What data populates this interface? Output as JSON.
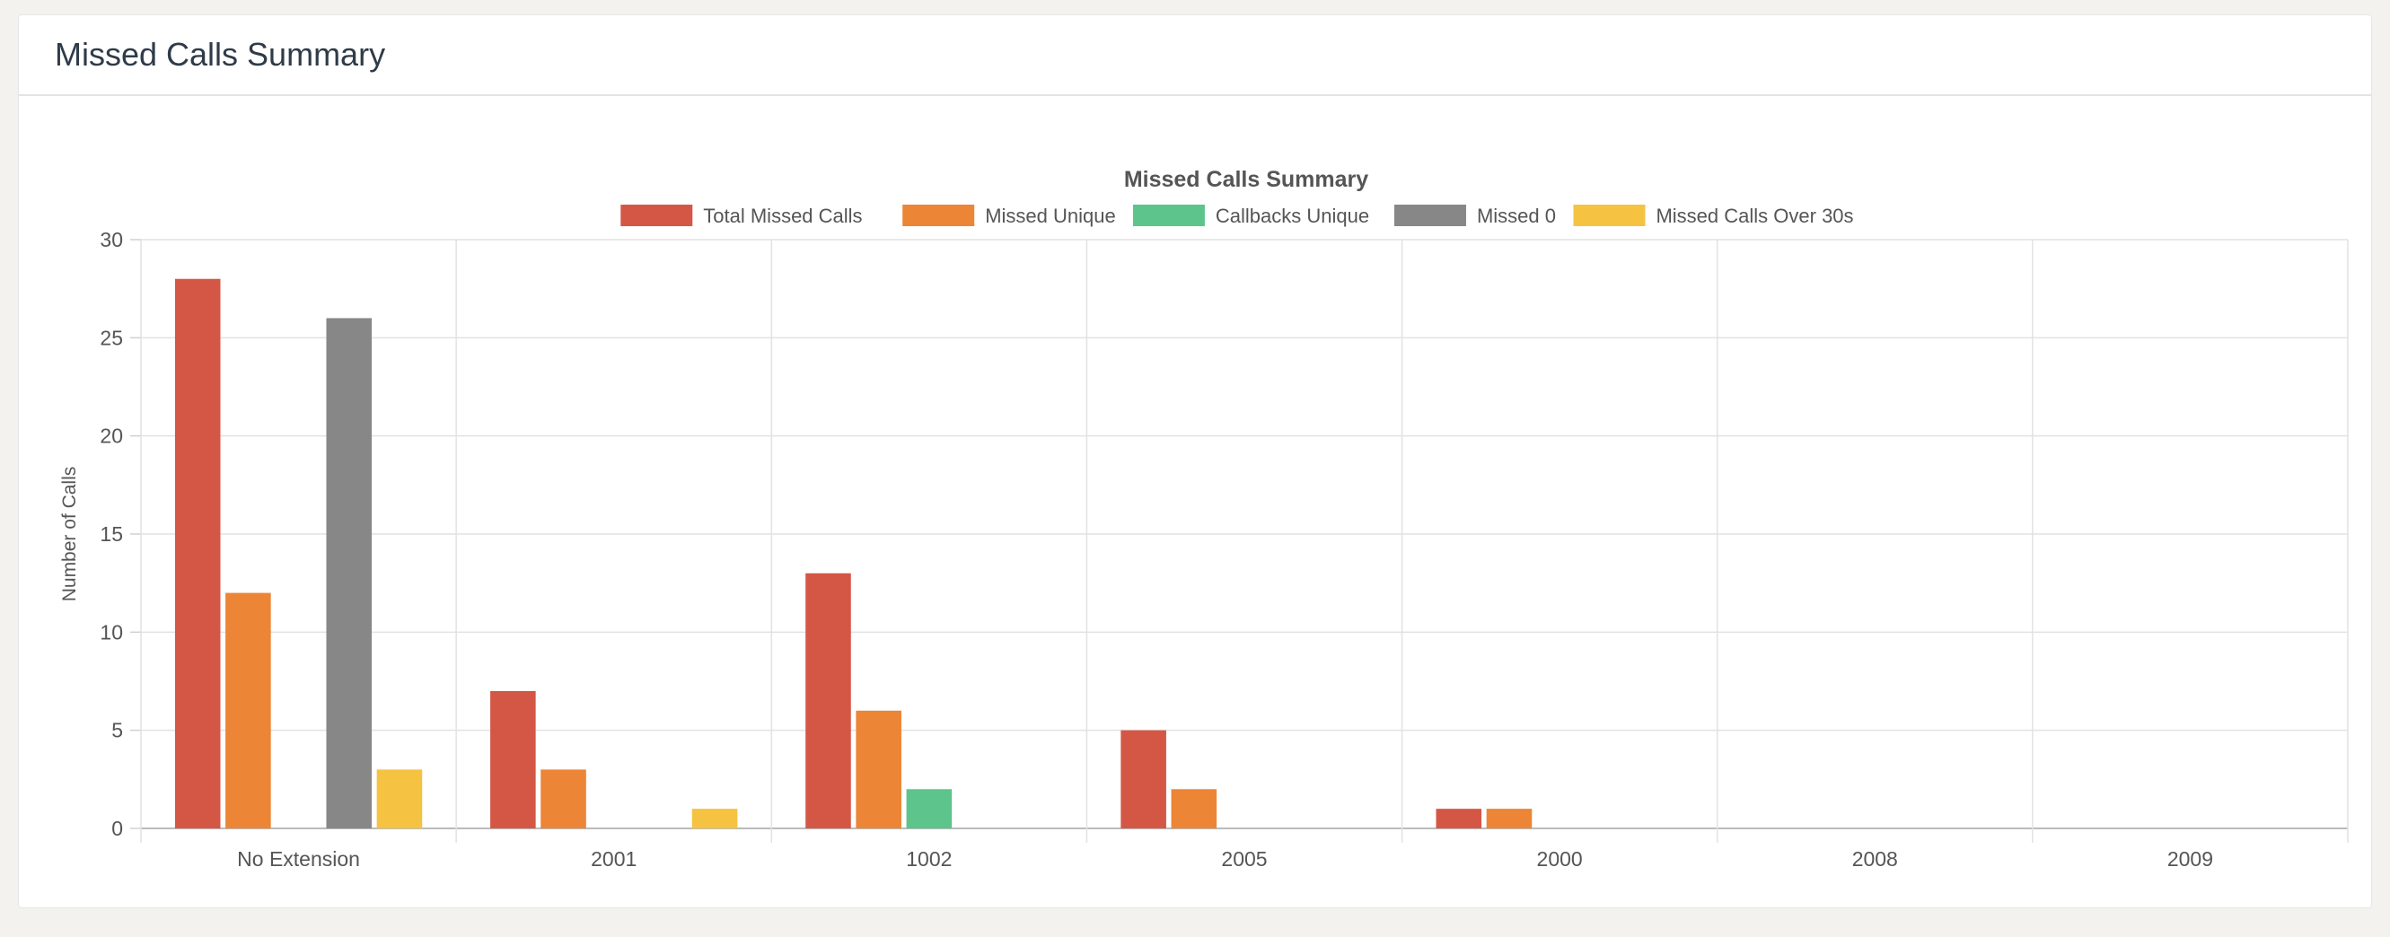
{
  "panel": {
    "title": "Missed Calls Summary"
  },
  "chart_data": {
    "type": "bar",
    "title": "Missed Calls Summary",
    "xlabel": "",
    "ylabel": "Number of Calls",
    "ylim": [
      0,
      30
    ],
    "yticks": [
      0,
      5,
      10,
      15,
      20,
      25,
      30
    ],
    "grid": true,
    "legend_position": "top-center",
    "categories": [
      "No Extension",
      "2001",
      "1002",
      "2005",
      "2000",
      "2008",
      "2009"
    ],
    "series": [
      {
        "name": "Total Missed Calls",
        "color": "#d45745",
        "values": [
          28,
          7,
          13,
          5,
          1,
          0,
          0
        ]
      },
      {
        "name": "Missed Unique",
        "color": "#ec8536",
        "values": [
          12,
          3,
          6,
          2,
          1,
          0,
          0
        ]
      },
      {
        "name": "Callbacks Unique",
        "color": "#5dc48b",
        "values": [
          0,
          0,
          2,
          0,
          0,
          0,
          0
        ]
      },
      {
        "name": "Missed 0",
        "color": "#878787",
        "values": [
          26,
          0,
          0,
          0,
          0,
          0,
          0
        ]
      },
      {
        "name": "Missed Calls Over 30s",
        "color": "#f5c242",
        "values": [
          3,
          1,
          0,
          0,
          0,
          0,
          0
        ]
      }
    ]
  }
}
